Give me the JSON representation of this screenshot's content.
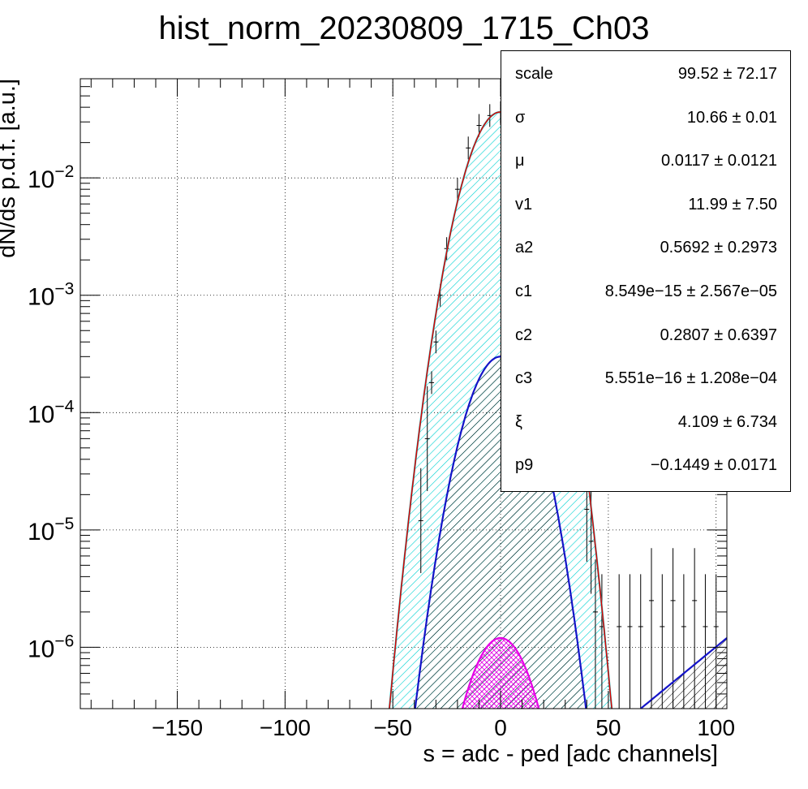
{
  "title": "hist_norm_20230809_1715_Ch03",
  "chart_data": {
    "type": "histogram with fit curves",
    "title": "hist_norm_20230809_1715_Ch03",
    "xlabel": "s = adc - ped [adc channels]",
    "ylabel": "dN/ds p.d.f. [a.u.]",
    "xlim": [
      -195,
      105
    ],
    "ylim": [
      3e-07,
      0.07
    ],
    "yscale": "log",
    "grid": true,
    "x_ticks": [
      -150,
      -100,
      -50,
      0,
      50,
      100
    ],
    "x_tick_labels": [
      "−150",
      "−100",
      "−50",
      "0",
      "50",
      "100"
    ],
    "y_ticks": [
      1e-06,
      1e-05,
      0.0001,
      0.001,
      0.01
    ],
    "y_tick_labels": [
      {
        "base": "10",
        "exp": "−6"
      },
      {
        "base": "10",
        "exp": "−5"
      },
      {
        "base": "10",
        "exp": "−4"
      },
      {
        "base": "10",
        "exp": "−3"
      },
      {
        "base": "10",
        "exp": "−2"
      }
    ],
    "curves": [
      {
        "color": "#00d2d2",
        "peak": 0.0365,
        "mu": 0,
        "sigma": 10.66,
        "fill": "hatched"
      },
      {
        "color": "#1414c8",
        "peak": 0.0003,
        "mu": 0,
        "sigma": 10.66,
        "fill": "hatched"
      },
      {
        "color": "#e600e6",
        "peak": 1.2e-06,
        "mu": 0,
        "sigma": 10.66,
        "fill": "cross-hatched"
      },
      {
        "color": "#e00000",
        "peak": 0.0365,
        "mu": 0,
        "sigma": 10.66,
        "fill": "none"
      }
    ],
    "tail_curve": {
      "color": "#1414c8",
      "x": [
        65,
        105
      ],
      "y": [
        3e-07,
        1.2e-06
      ]
    },
    "data_points": [
      {
        "x": -37,
        "y": 1.2e-05
      },
      {
        "x": -34,
        "y": 6e-05
      },
      {
        "x": -32,
        "y": 0.00018
      },
      {
        "x": -30,
        "y": 0.0004
      },
      {
        "x": -28,
        "y": 0.001
      },
      {
        "x": -25,
        "y": 0.0025
      },
      {
        "x": -20,
        "y": 0.008
      },
      {
        "x": -15,
        "y": 0.018
      },
      {
        "x": -10,
        "y": 0.028
      },
      {
        "x": -5,
        "y": 0.034
      },
      {
        "x": 0,
        "y": 0.036
      },
      {
        "x": 5,
        "y": 0.034
      },
      {
        "x": 10,
        "y": 0.028
      },
      {
        "x": 15,
        "y": 0.018
      },
      {
        "x": 20,
        "y": 0.009
      },
      {
        "x": 25,
        "y": 0.003
      },
      {
        "x": 30,
        "y": 0.0009
      },
      {
        "x": 36,
        "y": 0.0002
      },
      {
        "x": 40,
        "y": 1.5e-05
      },
      {
        "x": 42,
        "y": 8e-06
      },
      {
        "x": 44,
        "y": 2e-06
      },
      {
        "x": 47,
        "y": 1.5e-06
      },
      {
        "x": 55,
        "y": 1.5e-06
      },
      {
        "x": 60,
        "y": 1.5e-06
      },
      {
        "x": 65,
        "y": 1.5e-06
      },
      {
        "x": 70,
        "y": 2.5e-06
      },
      {
        "x": 75,
        "y": 1.5e-06
      },
      {
        "x": 80,
        "y": 2.5e-06
      },
      {
        "x": 85,
        "y": 1.5e-06
      },
      {
        "x": 90,
        "y": 2.5e-06
      },
      {
        "x": 95,
        "y": 1.5e-06
      },
      {
        "x": 100,
        "y": 1.5e-06
      }
    ]
  },
  "stats": [
    {
      "name": "scale",
      "value": "99.52 ± 72.17"
    },
    {
      "name": "σ",
      "value": "10.66 ± 0.01"
    },
    {
      "name": "μ",
      "value": "0.0117 ± 0.0121"
    },
    {
      "name": "v1",
      "value": "11.99 ± 7.50"
    },
    {
      "name": "a2",
      "value": "0.5692 ± 0.2973"
    },
    {
      "name": "c1",
      "value": "8.549e−15 ± 2.567e−05"
    },
    {
      "name": "c2",
      "value": "0.2807 ± 0.6397"
    },
    {
      "name": "c3",
      "value": "5.551e−16 ± 1.208e−04"
    },
    {
      "name": "ξ",
      "value": "4.109 ± 6.734"
    },
    {
      "name": "p9",
      "value": "−0.1449 ± 0.0171"
    }
  ]
}
